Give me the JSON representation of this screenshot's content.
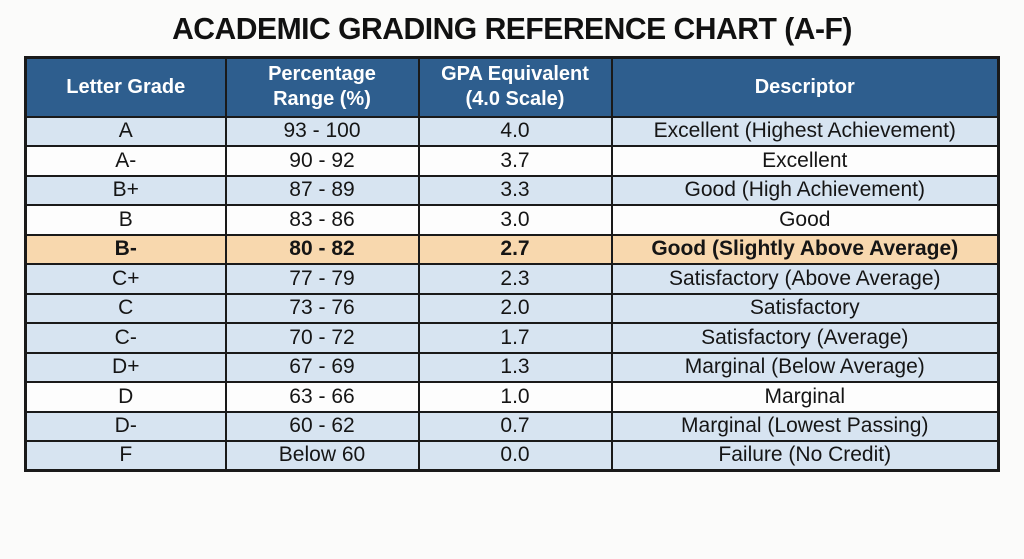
{
  "title": "ACADEMIC GRADING REFERENCE CHART (A-F)",
  "colors": {
    "header_bg": "#2e5e8e",
    "header_text": "#ffffff",
    "row_blue": "#d7e4f1",
    "row_white": "#fdfdfd",
    "row_highlight": "#f8d8ae",
    "border_color": "#1a1a1a",
    "title_color": "#111111",
    "cell_text": "#151515"
  },
  "table": {
    "columns": [
      "Letter Grade",
      "Percentage\nRange (%)",
      "GPA Equivalent\n(4.0 Scale)",
      "Descriptor"
    ],
    "rows": [
      {
        "grade": "A",
        "range": "93 - 100",
        "gpa": "4.0",
        "descriptor": "Excellent (Highest Achievement)",
        "highlighted": false
      },
      {
        "grade": "A-",
        "range": "90 - 92",
        "gpa": "3.7",
        "descriptor": "Excellent",
        "highlighted": false
      },
      {
        "grade": "B+",
        "range": "87 - 89",
        "gpa": "3.3",
        "descriptor": "Good (High Achievement)",
        "highlighted": false
      },
      {
        "grade": "B",
        "range": "83 - 86",
        "gpa": "3.0",
        "descriptor": "Good",
        "highlighted": false
      },
      {
        "grade": "B-",
        "range": "80 - 82",
        "gpa": "2.7",
        "descriptor": "Good (Slightly Above Average)",
        "highlighted": true
      },
      {
        "grade": "C+",
        "range": "77 - 79",
        "gpa": "2.3",
        "descriptor": "Satisfactory (Above Average)",
        "highlighted": false
      },
      {
        "grade": "C",
        "range": "73 - 76",
        "gpa": "2.0",
        "descriptor": "Satisfactory",
        "highlighted": false
      },
      {
        "grade": "C-",
        "range": "70 - 72",
        "gpa": "1.7",
        "descriptor": "Satisfactory (Average)",
        "highlighted": false
      },
      {
        "grade": "D+",
        "range": "67 - 69",
        "gpa": "1.3",
        "descriptor": "Marginal (Below Average)",
        "highlighted": false
      },
      {
        "grade": "D",
        "range": "63 - 66",
        "gpa": "1.0",
        "descriptor": "Marginal",
        "highlighted": false
      },
      {
        "grade": "D-",
        "range": "60 - 62",
        "gpa": "0.7",
        "descriptor": "Marginal (Lowest Passing)",
        "highlighted": false
      },
      {
        "grade": "F",
        "range": "Below 60",
        "gpa": "0.0",
        "descriptor": "Failure (No Credit)",
        "highlighted": false
      }
    ]
  }
}
